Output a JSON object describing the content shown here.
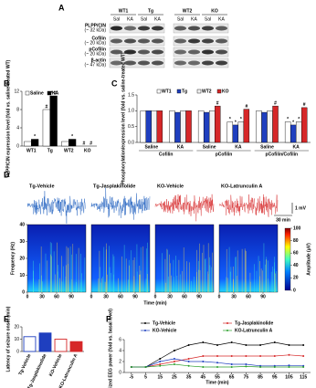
{
  "panel_labels": [
    "A",
    "B",
    "C",
    "D",
    "E",
    "F"
  ],
  "blot": {
    "groups": [
      {
        "name": "WT1",
        "lanes": [
          "Sal",
          "KA"
        ]
      },
      {
        "name": "Tg",
        "lanes": [
          "Sal",
          "KA"
        ]
      },
      {
        "name": "WT2",
        "lanes": [
          "Sal",
          "KA"
        ]
      },
      {
        "name": "KO",
        "lanes": [
          "Sal",
          "KA"
        ]
      }
    ],
    "rows": [
      {
        "name": "PLPP/CIN",
        "size": "(~ 32 kDa)"
      },
      {
        "name": "Cofilin",
        "size": "(~ 20 kDa)"
      },
      {
        "name": "pCofilin",
        "size": "(~ 20 kDa)"
      },
      {
        "name": "β-actin",
        "size": "(~ 47 kDa)"
      }
    ]
  },
  "chart_data": [
    {
      "type": "bar",
      "ylabel": "PLPP/CIN expression level (fold vs. saline-treated WT)",
      "categories": [
        "WT1",
        "Tg",
        "WT2",
        "KO"
      ],
      "series": [
        {
          "name": "Saline",
          "color": "#ffffff",
          "values": [
            1,
            8,
            1,
            0
          ],
          "significance": [
            null,
            "#",
            null,
            "#"
          ]
        },
        {
          "name": "KA",
          "color": "#000000",
          "values": [
            1.5,
            11,
            1.5,
            0
          ],
          "significance": [
            "*",
            "* #",
            "*",
            "#"
          ]
        }
      ],
      "ylim": [
        0,
        12
      ],
      "yticks": [
        0,
        4,
        8,
        12
      ],
      "legend": "upper left"
    },
    {
      "type": "bar",
      "ylabel": "Phosphorylation/expression level (fold vs. saline-treated WT)",
      "categories": [
        "Saline",
        "KA",
        "Saline",
        "KA",
        "Saline",
        "KA"
      ],
      "group_labels": [
        "Cofilin",
        "pCofilin",
        "pCofilin/Cofilin"
      ],
      "series": [
        {
          "name": "WT1",
          "color": "#ffffff",
          "values": [
            1,
            1,
            1,
            0.65,
            1,
            0.65
          ],
          "significance": [
            null,
            null,
            null,
            "*",
            null,
            "*"
          ]
        },
        {
          "name": "Tg",
          "color": "#1f3fbf",
          "values": [
            1,
            0.95,
            0.95,
            0.55,
            0.95,
            0.55
          ],
          "significance": [
            null,
            null,
            null,
            "*",
            null,
            "*"
          ]
        },
        {
          "name": "WT2",
          "color": "#f2f2f2",
          "values": [
            1,
            1,
            1,
            0.65,
            1,
            0.65
          ],
          "significance": [
            null,
            null,
            null,
            "*",
            null,
            "*"
          ]
        },
        {
          "name": "KO",
          "color": "#d62728",
          "values": [
            1,
            1,
            1.15,
            1.05,
            1.15,
            1.1
          ],
          "significance": [
            null,
            null,
            "#",
            "#",
            "#",
            "#"
          ]
        }
      ],
      "ylim": [
        0,
        1.5
      ],
      "yticks": [
        {
          "value": 0,
          "label": "0.0"
        },
        0.5,
        {
          "value": 1,
          "label": "1.0"
        },
        1.5
      ],
      "legend": "top"
    },
    {
      "type": "spectrogram",
      "panels": [
        {
          "title": "Tg-Vehicle",
          "color": "#1f5fbf"
        },
        {
          "title": "Tg-Jasplakinolide",
          "color": "#1f5fbf"
        },
        {
          "title": "KO-Vehicle",
          "color": "#d62728"
        },
        {
          "title": "KO-Latrunculin A",
          "color": "#d62728"
        }
      ],
      "ylabel": "Frequency (Hz)",
      "ylim": [
        0,
        40
      ],
      "yticks": [
        0,
        10,
        20,
        30,
        40
      ],
      "xlabel": "Time (min)",
      "xlim": [
        0,
        120
      ],
      "xticks": [
        0,
        30,
        60,
        90
      ],
      "trace_scale": "1 mV",
      "time_scale": "30 min",
      "colorbar": {
        "label": "Amplitude (μV)",
        "lim": [
          0,
          100
        ],
        "ticks": [
          0,
          20,
          40,
          60,
          80,
          100
        ]
      }
    },
    {
      "type": "bar",
      "ylabel": "Latency of seizure onset (min)",
      "categories": [
        "Tg-Vehicle",
        "Tg-Jasplakinolide",
        "KO-Vehicle",
        "KO-Latrunculin A"
      ],
      "values": [
        12,
        15,
        10,
        8
      ],
      "colors": [
        "#ffffff",
        "#1f3fbf",
        "#ffffff",
        "#d62728"
      ],
      "edgecolors": [
        "#1f3fbf",
        "#1f3fbf",
        "#d62728",
        "#d62728"
      ],
      "ylim": [
        0,
        20
      ],
      "yticks": [
        0,
        10,
        20
      ]
    },
    {
      "type": "line",
      "ylabel": "Normalized EEG power (fold vs. basal level)",
      "xlabel": "Time (min)",
      "x": [
        -5,
        5,
        15,
        25,
        35,
        45,
        55,
        65,
        75,
        85,
        95,
        105,
        115
      ],
      "series": [
        {
          "name": "Tg-Vehicle",
          "color": "#000000",
          "values": [
            1,
            1,
            2.5,
            4,
            5,
            5.5,
            5,
            5.5,
            5,
            5,
            5.5,
            5,
            5
          ]
        },
        {
          "name": "Tg-Jasplakinolide",
          "color": "#d62728",
          "values": [
            1,
            1,
            1.5,
            2,
            2.5,
            3,
            3,
            3,
            3,
            3,
            3,
            3.2,
            3
          ]
        },
        {
          "name": "KO-Vehicle",
          "color": "#1f3fbf",
          "values": [
            1,
            1,
            2,
            2.5,
            2,
            2,
            1.8,
            1.5,
            1.5,
            1.2,
            1.2,
            1.3,
            1.2
          ]
        },
        {
          "name": "KO-Latrunculin A",
          "color": "#2ca02c",
          "values": [
            1,
            1,
            1.2,
            1.5,
            1.2,
            1,
            1,
            1,
            1.1,
            1,
            1,
            1,
            1
          ]
        }
      ],
      "xlim": [
        -10,
        120
      ],
      "xticks": [
        -5,
        5,
        15,
        25,
        35,
        45,
        55,
        65,
        75,
        85,
        95,
        105,
        115
      ],
      "ylim": [
        0,
        6
      ],
      "yticks": [
        0,
        2,
        4,
        6
      ]
    }
  ]
}
